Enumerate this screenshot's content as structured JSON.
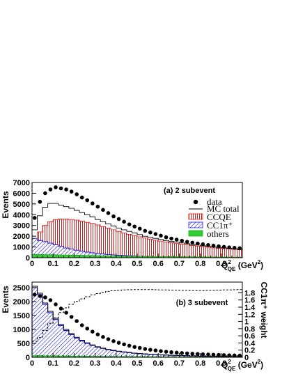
{
  "chart_data": [
    {
      "type": "bar",
      "annotation": "(a) 2 subevent",
      "ylabel": "Events",
      "xlabel": "Q",
      "xlabel_sup": "2",
      "xlabel_sub": "QE",
      "xlabel_unit": " (GeV",
      "xlabel_unit_sup": "2",
      "xlabel_unit_end": ")",
      "xlim": [
        0,
        1.0
      ],
      "ylim": [
        0,
        7000
      ],
      "x_ticks": [
        0,
        0.1,
        0.2,
        0.3,
        0.4,
        0.5,
        0.6,
        0.7,
        0.8,
        0.9
      ],
      "x_tick_labels": [
        "0",
        "0.1",
        "0.2",
        "0.3",
        "0.4",
        "0.5",
        "0.6",
        "0.7",
        "0.8",
        "0.9"
      ],
      "y_ticks": [
        0,
        1000,
        2000,
        3000,
        4000,
        5000,
        6000,
        7000
      ],
      "y_tick_labels": [
        "0",
        "1000",
        "2000",
        "3000",
        "4000",
        "5000",
        "6000",
        "7000"
      ],
      "bin_width": 0.025,
      "bin_edges_start": 0.0,
      "legend": [
        {
          "label": "data",
          "style": "marker"
        },
        {
          "label": "MC total",
          "style": "line"
        },
        {
          "label": "CCQE",
          "style": "red-hatch"
        },
        {
          "label": "CC1π⁺",
          "style": "blue-hatch"
        },
        {
          "label": "others",
          "style": "green"
        }
      ],
      "legend_placement": "right",
      "series": [
        {
          "name": "data",
          "x": [
            0.0125,
            0.0375,
            0.0625,
            0.0875,
            0.1125,
            0.1375,
            0.1625,
            0.1875,
            0.2125,
            0.2375,
            0.2625,
            0.2875,
            0.3125,
            0.3375,
            0.3625,
            0.3875,
            0.4125,
            0.4375,
            0.4625,
            0.4875,
            0.5125,
            0.5375,
            0.5625,
            0.5875,
            0.6125,
            0.6375,
            0.6625,
            0.6875,
            0.7125,
            0.7375,
            0.7625,
            0.7875,
            0.8125,
            0.8375,
            0.8625,
            0.8875,
            0.9125,
            0.9375,
            0.9625,
            0.9875
          ],
          "values": [
            3700,
            5200,
            6000,
            6350,
            6550,
            6450,
            6350,
            6150,
            5900,
            5600,
            5350,
            5050,
            4750,
            4450,
            4150,
            3850,
            3600,
            3350,
            3100,
            2900,
            2700,
            2500,
            2350,
            2200,
            2050,
            1900,
            1780,
            1680,
            1580,
            1480,
            1400,
            1320,
            1250,
            1180,
            1120,
            1060,
            1010,
            960,
            920,
            880
          ]
        },
        {
          "name": "MC total",
          "values": [
            2600,
            3900,
            4700,
            5050,
            5050,
            4900,
            4750,
            4600,
            4400,
            4200,
            4000,
            3800,
            3550,
            3350,
            3150,
            2950,
            2750,
            2600,
            2450,
            2300,
            2150,
            2000,
            1900,
            1800,
            1700,
            1600,
            1520,
            1440,
            1370,
            1300,
            1230,
            1170,
            1110,
            1050,
            1000,
            960,
            920,
            880,
            840,
            800
          ]
        },
        {
          "name": "CCQE",
          "values": [
            1500,
            2400,
            3000,
            3350,
            3550,
            3600,
            3600,
            3550,
            3500,
            3400,
            3300,
            3200,
            3050,
            2900,
            2750,
            2600,
            2450,
            2300,
            2180,
            2060,
            1950,
            1830,
            1730,
            1640,
            1550,
            1460,
            1390,
            1320,
            1250,
            1190,
            1130,
            1070,
            1020,
            970,
            920,
            880,
            840,
            800,
            770,
            740
          ]
        },
        {
          "name": "CC1π⁺",
          "values": [
            1800,
            1600,
            1500,
            1350,
            1200,
            1050,
            900,
            800,
            700,
            600,
            520,
            450,
            390,
            340,
            300,
            260,
            230,
            200,
            180,
            160,
            140,
            125,
            110,
            100,
            90,
            80,
            72,
            65,
            58,
            52,
            47,
            42,
            38,
            34,
            30,
            27,
            24,
            22,
            20,
            18
          ]
        },
        {
          "name": "others",
          "values": [
            300,
            300,
            290,
            280,
            270,
            260,
            250,
            240,
            230,
            220,
            210,
            200,
            190,
            180,
            170,
            160,
            150,
            145,
            140,
            135,
            130,
            125,
            120,
            115,
            110,
            105,
            100,
            96,
            92,
            88,
            84,
            80,
            76,
            72,
            68,
            64,
            60,
            57,
            54,
            51
          ]
        }
      ]
    },
    {
      "type": "bar",
      "annotation": "(b) 3 subevent",
      "ylabel": "Events",
      "y2label": "CC1π⁺ weight",
      "xlabel": "Q",
      "xlabel_sup": "2",
      "xlabel_sub": "QE",
      "xlabel_unit": " (GeV",
      "xlabel_unit_sup": "2",
      "xlabel_unit_end": ")",
      "xlim": [
        0,
        1.0
      ],
      "ylim": [
        0,
        2700
      ],
      "y2lim": [
        0,
        2.1
      ],
      "x_ticks": [
        0,
        0.1,
        0.2,
        0.3,
        0.4,
        0.5,
        0.6,
        0.7,
        0.8,
        0.9
      ],
      "x_tick_labels": [
        "0",
        "0.1",
        "0.2",
        "0.3",
        "0.4",
        "0.5",
        "0.6",
        "0.7",
        "0.8",
        "0.9"
      ],
      "y_ticks": [
        0,
        500,
        1000,
        1500,
        2000,
        2500
      ],
      "y_tick_labels": [
        "0",
        "500",
        "1000",
        "1500",
        "2000",
        "2500"
      ],
      "y2_ticks": [
        0,
        0.2,
        0.4,
        0.6,
        0.8,
        1.0,
        1.2,
        1.4,
        1.6,
        1.8
      ],
      "y2_tick_labels": [
        "0",
        "0.2",
        "0.4",
        "0.6",
        "0.8",
        "1",
        "1.2",
        "1.4",
        "1.6",
        "1.8"
      ],
      "bin_width": 0.025,
      "bin_edges_start": 0.0,
      "series": [
        {
          "name": "data",
          "x": [
            0.0125,
            0.0375,
            0.0625,
            0.0875,
            0.1125,
            0.1375,
            0.1625,
            0.1875,
            0.2125,
            0.2375,
            0.2625,
            0.2875,
            0.3125,
            0.3375,
            0.3625,
            0.3875,
            0.4125,
            0.4375,
            0.4625,
            0.4875,
            0.5125,
            0.5375,
            0.5625,
            0.5875,
            0.6125,
            0.6375,
            0.6625,
            0.6875,
            0.7125,
            0.7375,
            0.7625,
            0.7875,
            0.8125,
            0.8375,
            0.8625,
            0.8875,
            0.9125,
            0.9375,
            0.9625,
            0.9875
          ],
          "values": [
            2250,
            2200,
            2150,
            2050,
            1900,
            1750,
            1600,
            1450,
            1300,
            1150,
            1030,
            920,
            820,
            730,
            650,
            580,
            520,
            465,
            415,
            370,
            335,
            300,
            270,
            245,
            222,
            200,
            182,
            166,
            152,
            140,
            128,
            118,
            108,
            100,
            92,
            85,
            78,
            72,
            66,
            60
          ]
        },
        {
          "name": "MC total",
          "values": [
            2550,
            2300,
            1950,
            1650,
            1400,
            1180,
            1000,
            850,
            720,
            610,
            520,
            445,
            380,
            330,
            285,
            250,
            220,
            195,
            172,
            152,
            136,
            122,
            110,
            100,
            90,
            82,
            75,
            68,
            62,
            57,
            52,
            48,
            44,
            40,
            37,
            34,
            31,
            28,
            26,
            24
          ]
        },
        {
          "name": "CC1π⁺",
          "values": [
            2500,
            2250,
            1900,
            1600,
            1360,
            1140,
            960,
            815,
            690,
            585,
            500,
            428,
            366,
            318,
            274,
            240,
            211,
            187,
            165,
            146,
            130,
            117,
            105,
            95,
            86,
            78,
            71,
            64,
            58,
            53,
            48,
            44,
            40,
            37,
            34,
            31,
            28,
            25,
            23,
            21
          ]
        },
        {
          "name": "others",
          "values": [
            60,
            58,
            56,
            54,
            52,
            50,
            48,
            46,
            44,
            42,
            40,
            38,
            36,
            34,
            32,
            30,
            28,
            27,
            26,
            25,
            24,
            23,
            22,
            21,
            20,
            19,
            18,
            17,
            16,
            15,
            14,
            13,
            12,
            11,
            10,
            9,
            8,
            7,
            6,
            5
          ]
        },
        {
          "name": "CC1π⁺ weight",
          "axis": "y2",
          "values": [
            0.45,
            0.55,
            0.75,
            0.95,
            1.1,
            1.25,
            1.38,
            1.48,
            1.56,
            1.63,
            1.69,
            1.74,
            1.78,
            1.81,
            1.84,
            1.86,
            1.87,
            1.88,
            1.885,
            1.89,
            1.89,
            1.89,
            1.89,
            1.885,
            1.88,
            1.88,
            1.875,
            1.875,
            1.87,
            1.87,
            1.865,
            1.865,
            1.865,
            1.87,
            1.87,
            1.875,
            1.88,
            1.88,
            1.885,
            1.89
          ]
        }
      ]
    }
  ]
}
